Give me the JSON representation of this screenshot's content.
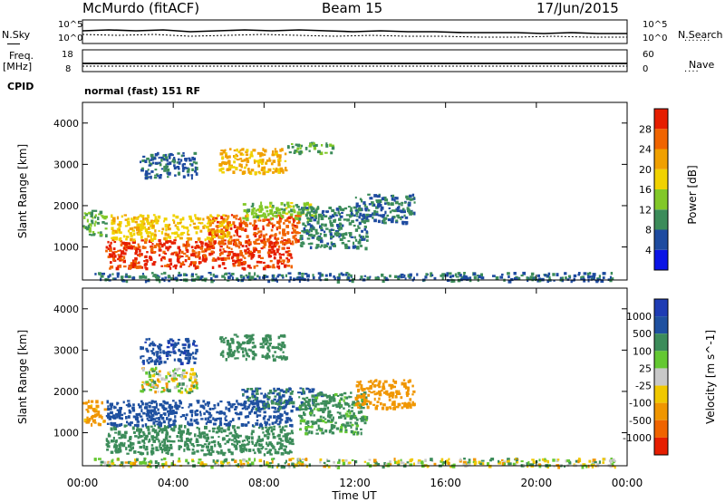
{
  "header": {
    "station": "McMurdo (fitACF)",
    "beam": "Beam 15",
    "date": "17/Jun/2015",
    "mode": "normal (fast) 151 RF"
  },
  "side_labels": {
    "nsky": "N.Sky",
    "nsearch": "N.Search",
    "freq": "Freq.",
    "freq_unit": "[MHz]",
    "nave": "Nave",
    "cpid": "CPID"
  },
  "tick_labels": {
    "noise_left": [
      "10^5",
      "10^0"
    ],
    "noise_right": [
      "10^5",
      "10^0"
    ],
    "freq_left": [
      "18",
      "8"
    ],
    "nave_right": [
      "60",
      "0"
    ]
  },
  "colors": {
    "power": [
      "#0a14e6",
      "#1e4ba0",
      "#3c8c5a",
      "#82c828",
      "#f0d200",
      "#f0a000",
      "#f06400",
      "#e61e00"
    ],
    "velocity": [
      "#1e3cb4",
      "#1e50a0",
      "#3c8c5a",
      "#64c832",
      "#c8c8c8",
      "#f0c800",
      "#f09600",
      "#f06400",
      "#e61e00"
    ]
  },
  "chart_data": [
    {
      "type": "heatmap",
      "quantity": "power",
      "xlabel": "",
      "ylabel": "Slant Range [km]",
      "xlim": [
        0,
        24
      ],
      "ylim": [
        200,
        4500
      ],
      "yticks": [
        1000,
        2000,
        3000,
        4000
      ],
      "colorbar": {
        "label": "Power [dB]",
        "range": [
          0,
          32
        ],
        "ticks": [
          "4",
          "8",
          "12",
          "16",
          "20",
          "24",
          "28"
        ]
      },
      "regions": [
        {
          "x": [
            1.0,
            9.2
          ],
          "y": [
            500,
            1200
          ],
          "value": 29
        },
        {
          "x": [
            5.5,
            9.5
          ],
          "y": [
            1100,
            1800
          ],
          "value": 27
        },
        {
          "x": [
            0.0,
            1.0
          ],
          "y": [
            1300,
            1900
          ],
          "value": 12
        },
        {
          "x": [
            1.2,
            6.5
          ],
          "y": [
            1200,
            1800
          ],
          "value": 19
        },
        {
          "x": [
            7.0,
            10.5
          ],
          "y": [
            1700,
            2100
          ],
          "value": 14
        },
        {
          "x": [
            9.5,
            12.5
          ],
          "y": [
            1000,
            2000
          ],
          "value": 9
        },
        {
          "x": [
            12.0,
            14.6
          ],
          "y": [
            1600,
            2300
          ],
          "value": 8
        },
        {
          "x": [
            2.5,
            5.0
          ],
          "y": [
            2700,
            3300
          ],
          "value": 7
        },
        {
          "x": [
            6.0,
            9.0
          ],
          "y": [
            2800,
            3400
          ],
          "value": 21
        },
        {
          "x": [
            9.0,
            11.0
          ],
          "y": [
            3300,
            3550
          ],
          "value": 11
        },
        {
          "x": [
            0.5,
            23.5
          ],
          "y": [
            200,
            400
          ],
          "value": 8
        }
      ]
    },
    {
      "type": "heatmap",
      "quantity": "velocity",
      "xlabel": "Time UT",
      "ylabel": "Slant Range [km]",
      "xlim": [
        0,
        24
      ],
      "ylim": [
        200,
        4500
      ],
      "xticks": [
        "00:00",
        "04:00",
        "08:00",
        "12:00",
        "16:00",
        "20:00",
        "00:00"
      ],
      "yticks": [
        1000,
        2000,
        3000,
        4000
      ],
      "colorbar": {
        "label": "Velocity [m s^-1]",
        "ticks": [
          "1000",
          "500",
          "100",
          "25",
          "-25",
          "-100",
          "-500",
          "-1000"
        ]
      },
      "regions": [
        {
          "x": [
            1.0,
            9.2
          ],
          "y": [
            500,
            1200
          ],
          "value": 300
        },
        {
          "x": [
            1.0,
            9.2
          ],
          "y": [
            1200,
            1800
          ],
          "value": 800
        },
        {
          "x": [
            0.0,
            1.0
          ],
          "y": [
            1200,
            1800
          ],
          "value": -200
        },
        {
          "x": [
            2.5,
            5.0
          ],
          "y": [
            2000,
            2600
          ],
          "value": 0
        },
        {
          "x": [
            7.0,
            10.5
          ],
          "y": [
            1600,
            2100
          ],
          "value": 500
        },
        {
          "x": [
            9.5,
            12.5
          ],
          "y": [
            1000,
            2000
          ],
          "value": 200
        },
        {
          "x": [
            12.0,
            14.6
          ],
          "y": [
            1600,
            2300
          ],
          "value": -300
        },
        {
          "x": [
            2.5,
            5.0
          ],
          "y": [
            2700,
            3300
          ],
          "value": 900
        },
        {
          "x": [
            6.0,
            9.0
          ],
          "y": [
            2800,
            3400
          ],
          "value": 300
        },
        {
          "x": [
            0.5,
            23.5
          ],
          "y": [
            200,
            400
          ],
          "value": 20
        }
      ]
    }
  ]
}
